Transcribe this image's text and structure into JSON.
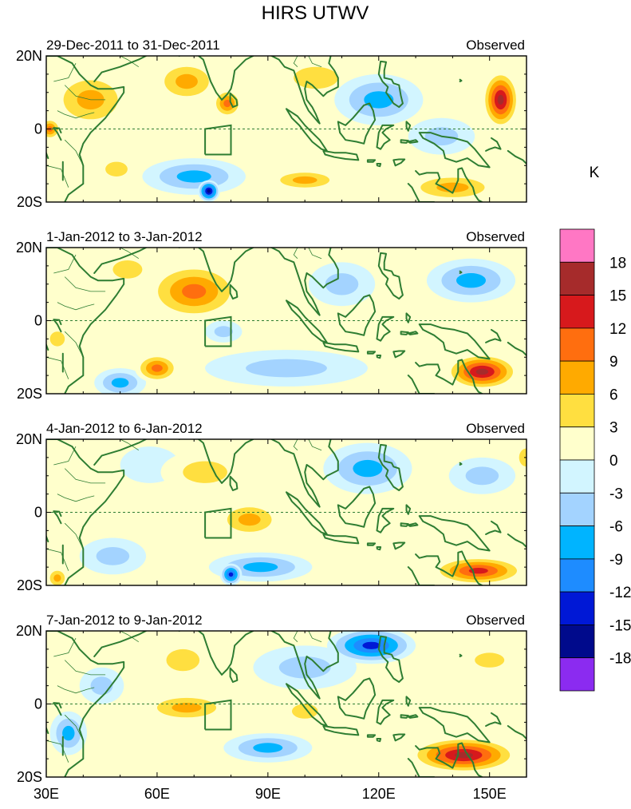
{
  "chart_data": {
    "type": "heatmap",
    "title": "HIRS UTWV",
    "units": "K",
    "x_axis": {
      "ticks": [
        "30E",
        "60E",
        "90E",
        "120E",
        "150E"
      ],
      "range_deg": [
        30,
        160
      ]
    },
    "y_axis": {
      "ticks": [
        "20N",
        "0",
        "20S"
      ],
      "range_deg": [
        -20,
        20
      ]
    },
    "colorbar": {
      "levels": [
        "18",
        "15",
        "12",
        "9",
        "6",
        "3",
        "0",
        "-3",
        "-6",
        "-9",
        "-12",
        "-15",
        "-18"
      ],
      "colors": [
        "#ff77c4",
        "#a62b2b",
        "#d7191c",
        "#ff6e0f",
        "#ffaa00",
        "#ffdf40",
        "#ffffcc",
        "#d2f5ff",
        "#a3d3ff",
        "#00b4ff",
        "#1e8cff",
        "#0018d6",
        "#000a8c",
        "#8b2bf0"
      ]
    },
    "panels": [
      {
        "date_range": "29-Dec-2011 to 31-Dec-2011",
        "label": "Observed",
        "anomalies": [
          {
            "lon": 42,
            "lat": 8,
            "value": 7,
            "sx": 11,
            "sy": 8
          },
          {
            "lon": 31,
            "lat": 0,
            "value": 12,
            "sx": 3,
            "sy": 3
          },
          {
            "lon": 68,
            "lat": 13,
            "value": 7,
            "sx": 9,
            "sy": 6
          },
          {
            "lon": 79,
            "lat": 7,
            "value": 12,
            "sx": 4,
            "sy": 4
          },
          {
            "lon": 103,
            "lat": 14,
            "value": 6,
            "sx": 12,
            "sy": 6
          },
          {
            "lon": 70,
            "lat": -13,
            "value": -8,
            "sx": 14,
            "sy": 5
          },
          {
            "lon": 74,
            "lat": -17,
            "value": -16,
            "sx": 3,
            "sy": 3
          },
          {
            "lon": 120,
            "lat": 8,
            "value": -8,
            "sx": 12,
            "sy": 7
          },
          {
            "lon": 137,
            "lat": -2,
            "value": -5,
            "sx": 9,
            "sy": 5
          },
          {
            "lon": 153,
            "lat": 8,
            "value": 17,
            "sx": 5,
            "sy": 8
          },
          {
            "lon": 140,
            "lat": -16,
            "value": 9,
            "sx": 13,
            "sy": 4
          },
          {
            "lon": 100,
            "lat": -14,
            "value": 7,
            "sx": 10,
            "sy": 3
          },
          {
            "lon": 49,
            "lat": -11,
            "value": 6,
            "sx": 6,
            "sy": 4
          },
          {
            "lon": 90,
            "lat": -1,
            "value": 3,
            "sx": 10,
            "sy": 6
          }
        ]
      },
      {
        "date_range": "1-Jan-2012 to 3-Jan-2012",
        "label": "Observed",
        "anomalies": [
          {
            "lon": 70,
            "lat": 8,
            "value": 10,
            "sx": 13,
            "sy": 8
          },
          {
            "lon": 52,
            "lat": 14,
            "value": 4,
            "sx": 8,
            "sy": 5
          },
          {
            "lon": 110,
            "lat": 10,
            "value": -5,
            "sx": 9,
            "sy": 6
          },
          {
            "lon": 145,
            "lat": 11,
            "value": -7,
            "sx": 12,
            "sy": 6
          },
          {
            "lon": 95,
            "lat": -13,
            "value": -6,
            "sx": 22,
            "sy": 5
          },
          {
            "lon": 50,
            "lat": -17,
            "value": -8,
            "sx": 7,
            "sy": 4
          },
          {
            "lon": 60,
            "lat": -13,
            "value": 10,
            "sx": 6,
            "sy": 4
          },
          {
            "lon": 148,
            "lat": -14,
            "value": 16,
            "sx": 10,
            "sy": 5
          },
          {
            "lon": 33,
            "lat": -5,
            "value": 6,
            "sx": 4,
            "sy": 4
          },
          {
            "lon": 78,
            "lat": -3,
            "value": -4,
            "sx": 5,
            "sy": 3
          }
        ]
      },
      {
        "date_range": "4-Jan-2012 to 6-Jan-2012",
        "label": "Observed",
        "anomalies": [
          {
            "lon": 73,
            "lat": 11,
            "value": 5,
            "sx": 12,
            "sy": 6
          },
          {
            "lon": 85,
            "lat": -2,
            "value": 7,
            "sx": 9,
            "sy": 5
          },
          {
            "lon": 117,
            "lat": 12,
            "value": -8,
            "sx": 12,
            "sy": 7
          },
          {
            "lon": 148,
            "lat": 10,
            "value": -5,
            "sx": 9,
            "sy": 5
          },
          {
            "lon": 88,
            "lat": -15,
            "value": -9,
            "sx": 14,
            "sy": 4
          },
          {
            "lon": 80,
            "lat": -17,
            "value": -14,
            "sx": 3,
            "sy": 3
          },
          {
            "lon": 48,
            "lat": -12,
            "value": -6,
            "sx": 9,
            "sy": 5
          },
          {
            "lon": 33,
            "lat": -18,
            "value": 9,
            "sx": 3,
            "sy": 3
          },
          {
            "lon": 147,
            "lat": -16,
            "value": 14,
            "sx": 13,
            "sy": 4
          },
          {
            "lon": 58,
            "lat": 13,
            "value": -3,
            "sx": 8,
            "sy": 5
          },
          {
            "lon": 160,
            "lat": 15,
            "value": 5,
            "sx": 4,
            "sy": 5
          }
        ]
      },
      {
        "date_range": "7-Jan-2012 to 9-Jan-2012",
        "label": "Observed",
        "anomalies": [
          {
            "lon": 118,
            "lat": 16,
            "value": -13,
            "sx": 12,
            "sy": 5
          },
          {
            "lon": 100,
            "lat": 10,
            "value": -5,
            "sx": 14,
            "sy": 6
          },
          {
            "lon": 67,
            "lat": 12,
            "value": 6,
            "sx": 9,
            "sy": 6
          },
          {
            "lon": 68,
            "lat": -1,
            "value": 8,
            "sx": 12,
            "sy": 4
          },
          {
            "lon": 45,
            "lat": 5,
            "value": -6,
            "sx": 6,
            "sy": 5
          },
          {
            "lon": 36,
            "lat": -8,
            "value": -8,
            "sx": 5,
            "sy": 6
          },
          {
            "lon": 90,
            "lat": -12,
            "value": -8,
            "sx": 12,
            "sy": 4
          },
          {
            "lon": 143,
            "lat": -14,
            "value": 17,
            "sx": 15,
            "sy": 5
          },
          {
            "lon": 150,
            "lat": 12,
            "value": 6,
            "sx": 8,
            "sy": 4
          },
          {
            "lon": 100,
            "lat": -2,
            "value": 5,
            "sx": 7,
            "sy": 4
          }
        ]
      }
    ]
  }
}
